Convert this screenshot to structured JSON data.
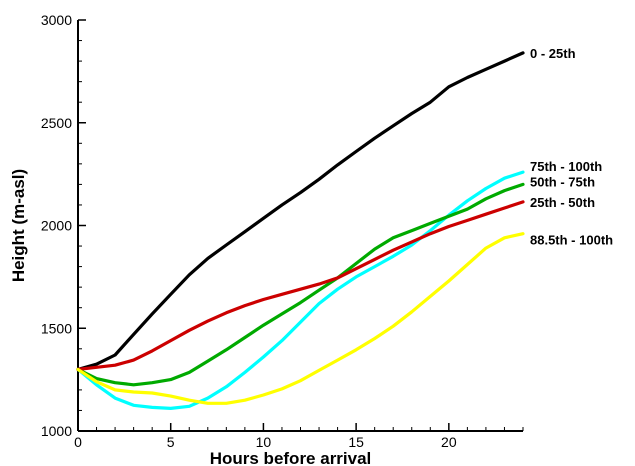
{
  "chart_data": {
    "type": "line",
    "title": "",
    "xlabel": "Hours before arrival",
    "ylabel": "Height (m-asl)",
    "xlim": [
      0,
      24
    ],
    "ylim": [
      1000,
      3000
    ],
    "xticks": [
      0,
      5,
      10,
      15,
      20
    ],
    "yticks": [
      1000,
      1500,
      2000,
      2500,
      3000
    ],
    "grid": false,
    "legend": "labels at right end of lines",
    "series": [
      {
        "name": "0 - 25th",
        "color": "#000000",
        "x": [
          0,
          1,
          2,
          3,
          4,
          5,
          6,
          7,
          8,
          9,
          10,
          11,
          12,
          13,
          14,
          15,
          16,
          17,
          18,
          19,
          20,
          21,
          22,
          23,
          24
        ],
        "y": [
          1300,
          1325,
          1370,
          1470,
          1570,
          1665,
          1760,
          1840,
          1905,
          1970,
          2035,
          2100,
          2160,
          2225,
          2295,
          2360,
          2425,
          2485,
          2545,
          2600,
          2675,
          2720,
          2760,
          2800,
          2840
        ]
      },
      {
        "name": "75th - 100th",
        "color": "#00ffff",
        "x": [
          0,
          1,
          2,
          3,
          4,
          5,
          6,
          7,
          8,
          9,
          10,
          11,
          12,
          13,
          14,
          15,
          16,
          17,
          18,
          19,
          20,
          21,
          22,
          23,
          24
        ],
        "y": [
          1300,
          1225,
          1160,
          1125,
          1115,
          1110,
          1120,
          1160,
          1215,
          1285,
          1360,
          1440,
          1530,
          1620,
          1690,
          1750,
          1800,
          1850,
          1905,
          1975,
          2050,
          2120,
          2180,
          2230,
          2260
        ]
      },
      {
        "name": "50th - 75th",
        "color": "#00aa00",
        "x": [
          0,
          1,
          2,
          3,
          4,
          5,
          6,
          7,
          8,
          9,
          10,
          11,
          12,
          13,
          14,
          15,
          16,
          17,
          18,
          19,
          20,
          21,
          22,
          23,
          24
        ],
        "y": [
          1300,
          1255,
          1235,
          1225,
          1235,
          1250,
          1285,
          1340,
          1395,
          1455,
          1515,
          1570,
          1625,
          1685,
          1745,
          1815,
          1885,
          1940,
          1975,
          2010,
          2045,
          2080,
          2130,
          2170,
          2200
        ]
      },
      {
        "name": "25th - 50th",
        "color": "#cc0000",
        "x": [
          0,
          1,
          2,
          3,
          4,
          5,
          6,
          7,
          8,
          9,
          10,
          11,
          12,
          13,
          14,
          15,
          16,
          17,
          18,
          19,
          20,
          21,
          22,
          23,
          24
        ],
        "y": [
          1300,
          1310,
          1320,
          1345,
          1390,
          1440,
          1490,
          1535,
          1575,
          1610,
          1640,
          1665,
          1690,
          1715,
          1745,
          1790,
          1835,
          1880,
          1920,
          1960,
          1995,
          2025,
          2055,
          2085,
          2115
        ]
      },
      {
        "name": "88.5th - 100th",
        "color": "#ffff00",
        "x": [
          0,
          1,
          2,
          3,
          4,
          5,
          6,
          7,
          8,
          9,
          10,
          11,
          12,
          13,
          14,
          15,
          16,
          17,
          18,
          19,
          20,
          21,
          22,
          23,
          24
        ],
        "y": [
          1300,
          1240,
          1200,
          1190,
          1185,
          1170,
          1150,
          1135,
          1135,
          1150,
          1175,
          1205,
          1245,
          1295,
          1345,
          1395,
          1450,
          1510,
          1580,
          1655,
          1730,
          1810,
          1890,
          1940,
          1960
        ]
      }
    ]
  }
}
